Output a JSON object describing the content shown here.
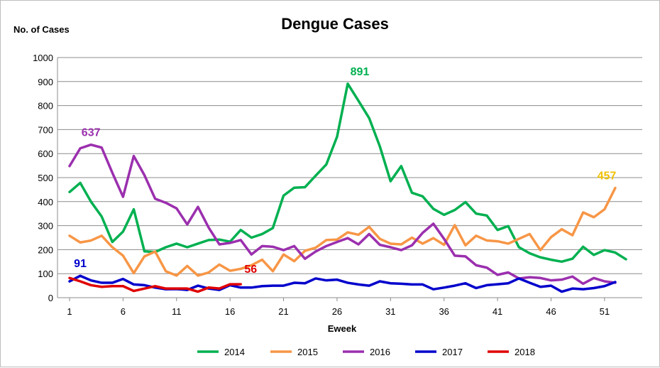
{
  "chart_data": {
    "type": "line",
    "title": "Dengue Cases",
    "xlabel": "Eweek",
    "ylabel": "No. of Cases",
    "ylim": [
      0,
      1000
    ],
    "yticks": [
      "0",
      "100",
      "200",
      "300",
      "400",
      "500",
      "600",
      "700",
      "800",
      "900",
      "1000"
    ],
    "xlim": [
      1,
      53
    ],
    "xticks": [
      "1",
      "6",
      "11",
      "16",
      "21",
      "26",
      "31",
      "36",
      "41",
      "46",
      "51"
    ],
    "grid": "horizontal",
    "legend_position": "bottom",
    "series": [
      {
        "name": "2014",
        "color": "#00b050",
        "x": [
          1,
          2,
          3,
          4,
          5,
          6,
          7,
          8,
          9,
          10,
          11,
          12,
          13,
          14,
          15,
          16,
          17,
          18,
          19,
          20,
          21,
          22,
          23,
          24,
          25,
          26,
          27,
          28,
          29,
          30,
          31,
          32,
          33,
          34,
          35,
          36,
          37,
          38,
          39,
          40,
          41,
          42,
          43,
          44,
          45,
          46,
          47,
          48,
          49,
          50,
          51,
          52,
          53
        ],
        "values": [
          440,
          478,
          400,
          338,
          232,
          275,
          368,
          193,
          190,
          210,
          225,
          210,
          225,
          240,
          242,
          233,
          282,
          250,
          265,
          290,
          425,
          458,
          460,
          508,
          555,
          670,
          891,
          820,
          748,
          630,
          485,
          548,
          437,
          422,
          370,
          345,
          365,
          398,
          350,
          342,
          282,
          298,
          210,
          185,
          168,
          158,
          150,
          162,
          212,
          178,
          198,
          188,
          160
        ]
      },
      {
        "name": "2015",
        "color": "#f79646",
        "x": [
          1,
          2,
          3,
          4,
          5,
          6,
          7,
          8,
          9,
          10,
          11,
          12,
          13,
          14,
          15,
          16,
          17,
          18,
          19,
          20,
          21,
          22,
          23,
          24,
          25,
          26,
          27,
          28,
          29,
          30,
          31,
          32,
          33,
          34,
          35,
          36,
          37,
          38,
          39,
          40,
          41,
          42,
          43,
          44,
          45,
          46,
          47,
          48,
          49,
          50,
          51,
          52
        ],
        "values": [
          258,
          230,
          238,
          258,
          210,
          175,
          102,
          172,
          192,
          110,
          92,
          132,
          92,
          105,
          138,
          112,
          120,
          135,
          158,
          110,
          180,
          152,
          195,
          208,
          240,
          242,
          272,
          262,
          295,
          245,
          225,
          222,
          250,
          225,
          248,
          220,
          302,
          218,
          258,
          238,
          235,
          225,
          245,
          265,
          198,
          252,
          285,
          260,
          355,
          335,
          368,
          457
        ]
      },
      {
        "name": "2016",
        "color": "#9b2fae",
        "x": [
          1,
          2,
          3,
          4,
          5,
          6,
          7,
          8,
          9,
          10,
          11,
          12,
          13,
          14,
          15,
          16,
          17,
          18,
          19,
          20,
          21,
          22,
          23,
          24,
          25,
          26,
          27,
          28,
          29,
          30,
          31,
          32,
          33,
          34,
          35,
          36,
          37,
          38,
          39,
          40,
          41,
          42,
          43,
          44,
          45,
          46,
          47,
          48,
          49,
          50,
          51,
          52
        ],
        "values": [
          548,
          622,
          637,
          625,
          520,
          420,
          590,
          510,
          412,
          395,
          372,
          305,
          378,
          292,
          222,
          228,
          240,
          180,
          215,
          212,
          198,
          215,
          162,
          192,
          215,
          232,
          248,
          222,
          265,
          220,
          210,
          198,
          218,
          270,
          308,
          245,
          175,
          172,
          135,
          125,
          95,
          105,
          80,
          85,
          82,
          72,
          75,
          88,
          58,
          82,
          68,
          62
        ]
      },
      {
        "name": "2017",
        "color": "#0000cc",
        "x": [
          1,
          2,
          3,
          4,
          5,
          6,
          7,
          8,
          9,
          10,
          11,
          12,
          13,
          14,
          15,
          16,
          17,
          18,
          19,
          20,
          21,
          22,
          23,
          24,
          25,
          26,
          27,
          28,
          29,
          30,
          31,
          32,
          33,
          34,
          35,
          36,
          37,
          38,
          39,
          40,
          41,
          42,
          43,
          44,
          45,
          46,
          47,
          48,
          49,
          50,
          51,
          52
        ],
        "values": [
          68,
          91,
          72,
          62,
          62,
          78,
          55,
          52,
          42,
          35,
          36,
          32,
          50,
          38,
          32,
          52,
          42,
          42,
          48,
          50,
          50,
          62,
          60,
          80,
          72,
          75,
          62,
          55,
          50,
          68,
          60,
          58,
          55,
          55,
          35,
          42,
          50,
          60,
          40,
          52,
          56,
          60,
          80,
          62,
          45,
          50,
          25,
          38,
          35,
          40,
          48,
          65
        ]
      },
      {
        "name": "2018",
        "color": "#e00000",
        "x": [
          1,
          2,
          3,
          4,
          5,
          6,
          7,
          8,
          9,
          10,
          11,
          12,
          13,
          14,
          15,
          16,
          17
        ],
        "values": [
          82,
          68,
          52,
          45,
          48,
          48,
          28,
          38,
          48,
          38,
          38,
          38,
          25,
          42,
          38,
          56,
          56
        ]
      }
    ],
    "annotations": [
      {
        "text": "891",
        "x": 27,
        "y": 891,
        "color": "#00b050"
      },
      {
        "text": "637",
        "x": 3,
        "y": 637,
        "color": "#9b2fae"
      },
      {
        "text": "457",
        "x": 52,
        "y": 457,
        "color": "#f0c000"
      },
      {
        "text": "91",
        "x": 2,
        "y": 91,
        "color": "#0000cc"
      },
      {
        "text": "56",
        "x": 17,
        "y": 56,
        "color": "#e00000"
      }
    ]
  }
}
